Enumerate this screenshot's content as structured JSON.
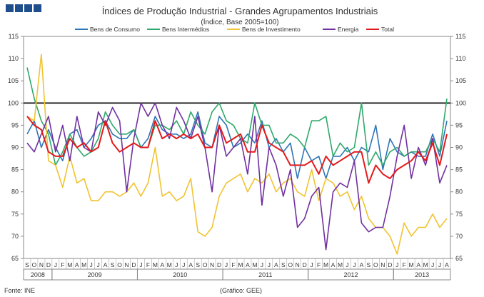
{
  "header": {
    "title": "Índices de Produção Industrial - Grandes Agrupamentos Industriais",
    "subtitle": "(Índice, Base 2005=100)"
  },
  "footer": {
    "source": "Fonte: INE",
    "graph_credit": "(Gráfico: GEE)"
  },
  "colors": {
    "consumo": "#2e75b6",
    "intermedios": "#2ea86a",
    "investimento": "#f0c330",
    "energia": "#7030a0",
    "total": "#e31a1c",
    "reference": "#000000"
  },
  "chart_data": {
    "type": "line",
    "title": "Índices de Produção Industrial - Grandes Agrupamentos Industriais",
    "subtitle": "(Índice, Base 2005=100)",
    "ylim": [
      65,
      115
    ],
    "yticks": [
      65,
      70,
      75,
      80,
      85,
      90,
      95,
      100,
      105,
      110,
      115
    ],
    "y_axis_both_sides": true,
    "reference_line": 100,
    "legend_position": "top",
    "month_labels": [
      "S",
      "O",
      "N",
      "D",
      "J",
      "F",
      "M",
      "A",
      "M",
      "J",
      "J",
      "A",
      "S",
      "O",
      "N",
      "D",
      "J",
      "F",
      "M",
      "A",
      "M",
      "J",
      "J",
      "A",
      "S",
      "O",
      "N",
      "D",
      "J",
      "F",
      "M",
      "A",
      "M",
      "J",
      "J",
      "A",
      "S",
      "O",
      "N",
      "D",
      "J",
      "F",
      "M",
      "A",
      "M",
      "J",
      "J",
      "A",
      "S",
      "O",
      "N",
      "D",
      "J",
      "F",
      "M",
      "A",
      "M",
      "J",
      "J",
      "A"
    ],
    "years": [
      {
        "label": "2008",
        "start": 0,
        "end": 3
      },
      {
        "label": "2009",
        "start": 4,
        "end": 15
      },
      {
        "label": "2010",
        "start": 16,
        "end": 27
      },
      {
        "label": "2011",
        "start": 28,
        "end": 39
      },
      {
        "label": "2012",
        "start": 40,
        "end": 51
      },
      {
        "label": "2013",
        "start": 52,
        "end": 59
      }
    ],
    "series": [
      {
        "name": "Bens de Consumo",
        "key": "consumo",
        "values": [
          93,
          96,
          90,
          94,
          90,
          87,
          93,
          94,
          90,
          92,
          95,
          96,
          93,
          92,
          92,
          94,
          90,
          92,
          97,
          94,
          93,
          93,
          92,
          93,
          98,
          91,
          90,
          97,
          95,
          90,
          91,
          93,
          91,
          96,
          90,
          92,
          89,
          91,
          83,
          90,
          87,
          88,
          83,
          88,
          88,
          90,
          87,
          90,
          89,
          95,
          85,
          92,
          89,
          88,
          89,
          88,
          88,
          93,
          88,
          96
        ]
      },
      {
        "name": "Bens Intermédios",
        "key": "intermedios",
        "values": [
          108,
          101,
          96,
          93,
          86,
          89,
          93,
          90,
          88,
          89,
          92,
          98,
          95,
          93,
          93,
          94,
          90,
          90,
          95,
          95,
          94,
          96,
          93,
          98,
          95,
          93,
          98,
          100,
          96,
          95,
          92,
          91,
          100,
          95,
          95,
          91,
          91,
          93,
          92,
          90,
          96,
          96,
          97,
          88,
          91,
          89,
          90,
          100,
          86,
          89,
          86,
          89,
          90,
          88,
          89,
          89,
          89,
          92,
          89,
          101
        ]
      },
      {
        "name": "Bens de Investimento",
        "key": "investimento",
        "values": [
          97,
          96,
          111,
          87,
          86,
          81,
          88,
          82,
          83,
          78,
          78,
          80,
          80,
          79,
          80,
          82,
          79,
          82,
          90,
          79,
          80,
          78,
          79,
          83,
          71,
          70,
          72,
          79,
          82,
          83,
          84,
          80,
          83,
          82,
          84,
          80,
          82,
          83,
          80,
          79,
          85,
          78,
          83,
          82,
          79,
          80,
          76,
          79,
          74,
          72,
          72,
          70,
          66,
          73,
          70,
          72,
          72,
          75,
          72,
          74
        ]
      },
      {
        "name": "Energia",
        "key": "energia",
        "values": [
          91,
          89,
          93,
          97,
          89,
          95,
          87,
          97,
          90,
          89,
          98,
          95,
          99,
          96,
          80,
          92,
          100,
          97,
          100,
          95,
          92,
          99,
          96,
          92,
          97,
          90,
          80,
          95,
          88,
          90,
          92,
          84,
          97,
          77,
          90,
          86,
          79,
          85,
          72,
          74,
          79,
          81,
          67,
          80,
          82,
          81,
          87,
          73,
          71,
          72,
          72,
          79,
          88,
          95,
          83,
          90,
          86,
          92,
          82,
          86
        ]
      },
      {
        "name": "Total",
        "key": "total",
        "values": [
          97,
          95,
          94,
          89,
          88,
          88,
          92,
          90,
          91,
          89,
          90,
          96,
          91,
          89,
          90,
          91,
          90,
          90,
          96,
          92,
          93,
          92,
          93,
          92,
          93,
          90,
          90,
          95,
          91,
          92,
          93,
          89,
          89,
          95,
          91,
          90,
          89,
          86,
          86,
          86,
          87,
          84,
          88,
          86,
          87,
          88,
          89,
          89,
          82,
          86,
          84,
          83,
          85,
          86,
          87,
          89,
          87,
          91,
          86,
          93
        ]
      }
    ]
  }
}
